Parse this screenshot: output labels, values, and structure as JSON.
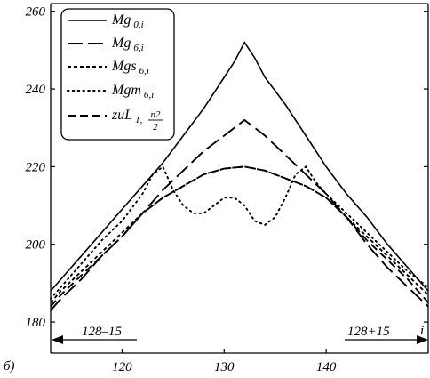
{
  "chart_data": {
    "type": "line",
    "panel_label": "б)",
    "xlabel": "i",
    "xlim": [
      113,
      150
    ],
    "ylim": [
      172,
      262
    ],
    "xticks": [
      120,
      130,
      140
    ],
    "yticks": [
      180,
      200,
      220,
      240,
      260
    ],
    "grid": false,
    "legend_placement": "top-left",
    "annotations": {
      "left": "128–15",
      "right": "128+15"
    },
    "series": [
      {
        "name": "Mg",
        "sub": "0,i",
        "style": "solid",
        "x": [
          113,
          114,
          116,
          118,
          120,
          122,
          124,
          126,
          128,
          130,
          131,
          132,
          133,
          134,
          136,
          138,
          140,
          142,
          144,
          146,
          148,
          150
        ],
        "y": [
          188,
          191,
          197,
          203,
          209,
          215,
          221,
          228,
          235,
          243,
          247,
          252,
          248,
          243,
          236,
          228,
          220,
          213,
          207,
          200,
          194,
          188
        ]
      },
      {
        "name": "Mg",
        "sub": "6,i",
        "style": "longdash",
        "x": [
          113,
          114,
          116,
          118,
          120,
          122,
          124,
          126,
          128,
          130,
          132,
          134,
          136,
          138,
          140,
          142,
          144,
          146,
          148,
          150
        ],
        "y": [
          183,
          186,
          191,
          197,
          202,
          208,
          214,
          219,
          224,
          228,
          232,
          228,
          223,
          218,
          213,
          207,
          200,
          194,
          189,
          184
        ]
      },
      {
        "name": "Mgs",
        "sub": "6,i",
        "style": "shortdash",
        "x": [
          113,
          114,
          116,
          118,
          120,
          122,
          124,
          126,
          128,
          130,
          132,
          134,
          136,
          138,
          140,
          142,
          144,
          146,
          148,
          150
        ],
        "y": [
          185,
          188,
          193,
          198,
          203,
          208,
          212,
          215,
          218,
          219.5,
          220,
          219,
          217,
          215,
          212,
          207,
          202,
          197,
          192,
          187
        ]
      },
      {
        "name": "Mgm",
        "sub": "6,i",
        "style": "dotted",
        "x": [
          113,
          114,
          116,
          118,
          120,
          122,
          123,
          124,
          125,
          126,
          127,
          128,
          129,
          130,
          131,
          132,
          133,
          134,
          135,
          136,
          137,
          138,
          139,
          140,
          142,
          144,
          146,
          148,
          150
        ],
        "y": [
          186,
          189,
          195,
          201,
          206,
          213,
          218,
          220,
          214,
          210,
          208,
          208,
          210,
          212,
          212,
          210,
          206,
          205,
          207,
          212,
          218,
          220,
          216,
          213,
          208,
          203,
          198,
          193,
          189
        ]
      },
      {
        "name": "zuL",
        "sub": "1,",
        "frac_num": "n2",
        "frac_den": "2",
        "style": "mediumdash",
        "x": [
          113,
          114,
          116,
          118,
          120,
          122,
          124,
          126,
          128,
          130,
          132,
          134,
          136,
          138,
          140,
          142,
          144,
          146,
          148,
          150
        ],
        "y": [
          184,
          187,
          192,
          197,
          202,
          208,
          212,
          215,
          218,
          219.5,
          220,
          219,
          217,
          215,
          212,
          207,
          201,
          196,
          191,
          185
        ]
      }
    ]
  }
}
